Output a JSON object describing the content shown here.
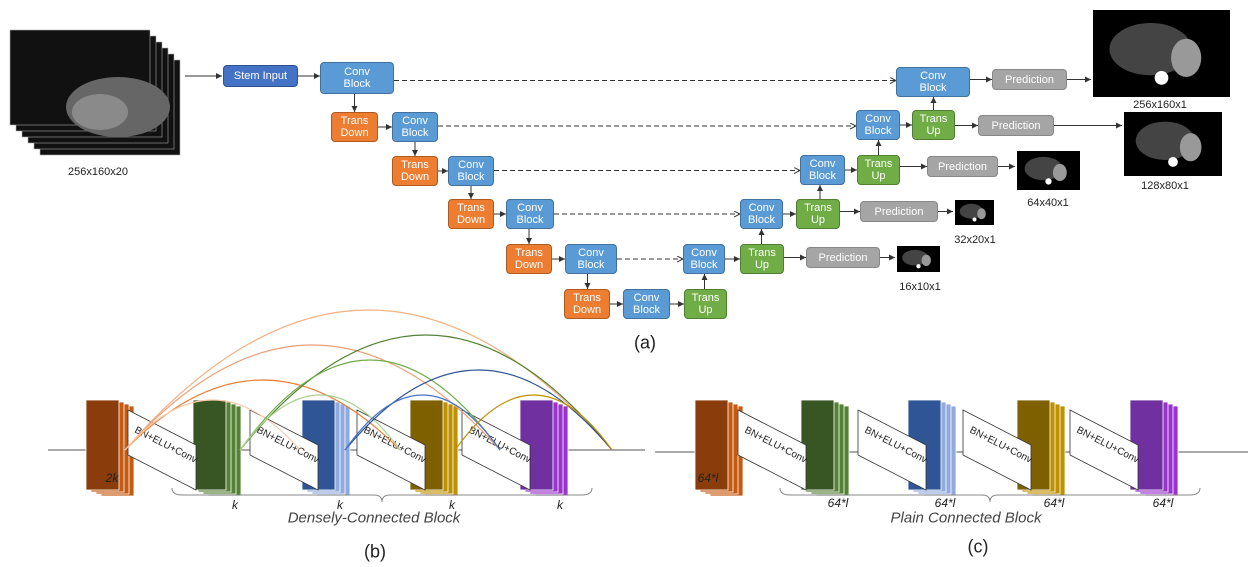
{
  "input": {
    "size": "256x160x20"
  },
  "nodes": [
    {
      "label": "Stem Input"
    },
    {
      "label": "Conv Block"
    },
    {
      "label": "Trans Down"
    },
    {
      "label": "Conv Block"
    },
    {
      "label": "Trans Down"
    },
    {
      "label": "Conv Block"
    },
    {
      "label": "Trans Down"
    },
    {
      "label": "Conv Block"
    },
    {
      "label": "Trans Down"
    },
    {
      "label": "Conv Block"
    },
    {
      "label": "Trans Down"
    },
    {
      "label": "Conv Block"
    },
    {
      "label": "Trans Up"
    },
    {
      "label": "Conv Block"
    },
    {
      "label": "Trans Up"
    },
    {
      "label": "Prediction"
    },
    {
      "label": "Conv Block"
    },
    {
      "label": "Trans Up"
    },
    {
      "label": "Prediction"
    },
    {
      "label": "Conv Block"
    },
    {
      "label": "Trans Up"
    },
    {
      "label": "Prediction"
    },
    {
      "label": "Conv Block"
    },
    {
      "label": "Trans Up"
    },
    {
      "label": "Prediction"
    },
    {
      "label": "Conv Block"
    },
    {
      "label": "Prediction"
    }
  ],
  "outputs": [
    {
      "size": "16x10x1"
    },
    {
      "size": "32x20x1"
    },
    {
      "size": "64x40x1"
    },
    {
      "size": "128x80x1"
    },
    {
      "size": "256x160x1"
    }
  ],
  "captions": [
    "(a)",
    "(b)",
    "(c)"
  ],
  "dense": {
    "layers": [
      "BN+ELU+Conv",
      "BN+ELU+Conv",
      "BN+ELU+Conv",
      "BN+ELU+Conv"
    ],
    "sizes": [
      "2k",
      "k",
      "k",
      "k",
      "k"
    ],
    "title": "Densely-Connected Block"
  },
  "plain": {
    "layers": [
      "BN+ELU+Conv",
      "BN+ELU+Conv",
      "BN+ELU+Conv",
      "BN+ELU+Conv"
    ],
    "sizes": [
      "64*l",
      "64*l",
      "64*l",
      "64*l",
      "64*l"
    ],
    "title": "Plain Connected Block"
  }
}
